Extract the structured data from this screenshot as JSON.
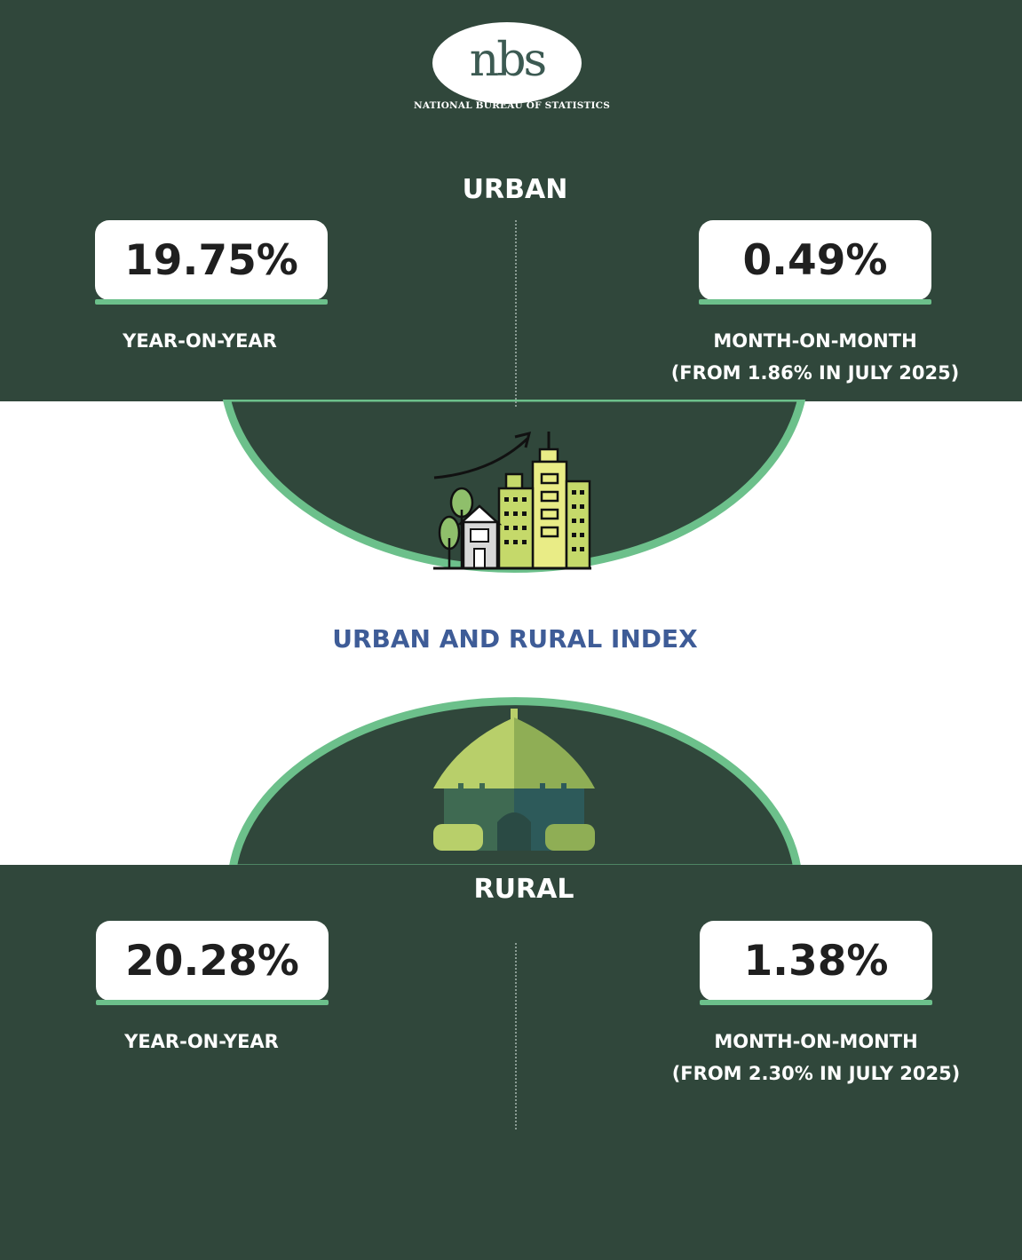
{
  "header": {
    "logo_text": "nbs",
    "org_name": "NATIONAL BUREAU OF STATISTICS"
  },
  "urban": {
    "title": "URBAN",
    "yoy_value": "19.75%",
    "yoy_label": "YEAR-ON-YEAR",
    "mom_value": "0.49%",
    "mom_label": "MONTH-ON-MONTH",
    "mom_note": "(FROM 1.86% IN JULY 2025)",
    "icon": "city-growth-icon"
  },
  "index_title": "URBAN AND RURAL INDEX",
  "rural": {
    "title": "RURAL",
    "yoy_value": "20.28%",
    "yoy_label": "YEAR-ON-YEAR",
    "mom_value": "1.38%",
    "mom_label": "MONTH-ON-MONTH",
    "mom_note": "(FROM 2.30% IN JULY 2025)",
    "icon": "hut-icon"
  },
  "colors": {
    "panel": "#30473b",
    "accent": "#6cc08b",
    "index_title": "#3e5c97",
    "background": "#ffffff"
  }
}
